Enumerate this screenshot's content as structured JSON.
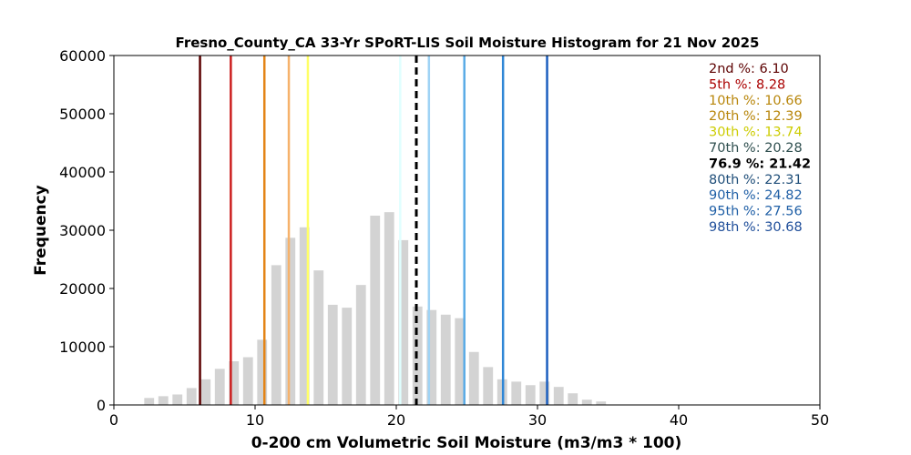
{
  "chart_data": {
    "type": "bar",
    "title": "Fresno_County_CA 33-Yr SPoRT-LIS Soil Moisture Histogram for 21 Nov 2025",
    "xlabel": "0-200 cm Volumetric Soil Moisture (m3/m3 * 100)",
    "ylabel": "Frequency",
    "xlim": [
      0,
      50
    ],
    "ylim": [
      0,
      60000
    ],
    "xticks": [
      "0",
      "10",
      "20",
      "30",
      "40",
      "50"
    ],
    "yticks": [
      "0",
      "10000",
      "20000",
      "30000",
      "40000",
      "50000",
      "60000"
    ],
    "grid": false,
    "bar_color": "#d3d3d3",
    "bins": {
      "x": [
        2.5,
        3.5,
        4.5,
        5.5,
        6.5,
        7.5,
        8.5,
        9.5,
        10.5,
        11.5,
        12.5,
        13.5,
        14.5,
        15.5,
        16.5,
        17.5,
        18.5,
        19.5,
        20.5,
        21.5,
        22.5,
        23.5,
        24.5,
        25.5,
        26.5,
        27.5,
        28.5,
        29.5,
        30.5,
        31.5,
        32.5,
        33.5,
        34.5
      ],
      "values": [
        1200,
        1500,
        1800,
        2900,
        4400,
        6200,
        7500,
        8200,
        11200,
        24000,
        28700,
        30500,
        23100,
        17200,
        16700,
        20600,
        32500,
        33100,
        28300,
        16900,
        16300,
        15500,
        14900,
        9100,
        6500,
        4400,
        4000,
        3400,
        4000,
        3100,
        2000,
        900,
        600
      ]
    },
    "percentiles": [
      {
        "label": "2nd %: 6.10",
        "value": 6.1,
        "color": "#5c0000",
        "style": "solid"
      },
      {
        "label": "5th %: 8.28",
        "value": 8.28,
        "color": "#cc1f1f",
        "style": "solid"
      },
      {
        "label": "10th %: 10.66",
        "value": 10.66,
        "color": "#e38417",
        "style": "solid"
      },
      {
        "label": "20th %: 12.39",
        "value": 12.39,
        "color": "#f6b26b",
        "style": "solid"
      },
      {
        "label": "30th %: 13.74",
        "value": 13.74,
        "color": "#ffff66",
        "style": "solid"
      },
      {
        "label": "70th %: 20.28",
        "value": 20.28,
        "color": "#e0ffff",
        "style": "solid"
      },
      {
        "label": "76.9 %: 21.42",
        "value": 21.42,
        "color": "#000000",
        "style": "dashed"
      },
      {
        "label": "80th %: 22.31",
        "value": 22.31,
        "color": "#9fd3f5",
        "style": "solid"
      },
      {
        "label": "90th %: 24.82",
        "value": 24.82,
        "color": "#5aabe6",
        "style": "solid"
      },
      {
        "label": "95th %: 27.56",
        "value": 27.56,
        "color": "#2e86d6",
        "style": "solid"
      },
      {
        "label": "98th %: 30.68",
        "value": 30.68,
        "color": "#1c5fbf",
        "style": "solid"
      }
    ],
    "legend_placement": "top-right",
    "legend_label_color": [
      "#5c0000",
      "#aa0000",
      "#b8860b",
      "#b8860b",
      "#cccc00",
      "#2f4f4f",
      "#000000",
      "#1f4e79",
      "#1f5fa6",
      "#1f5fa6",
      "#1f4e9a"
    ]
  }
}
